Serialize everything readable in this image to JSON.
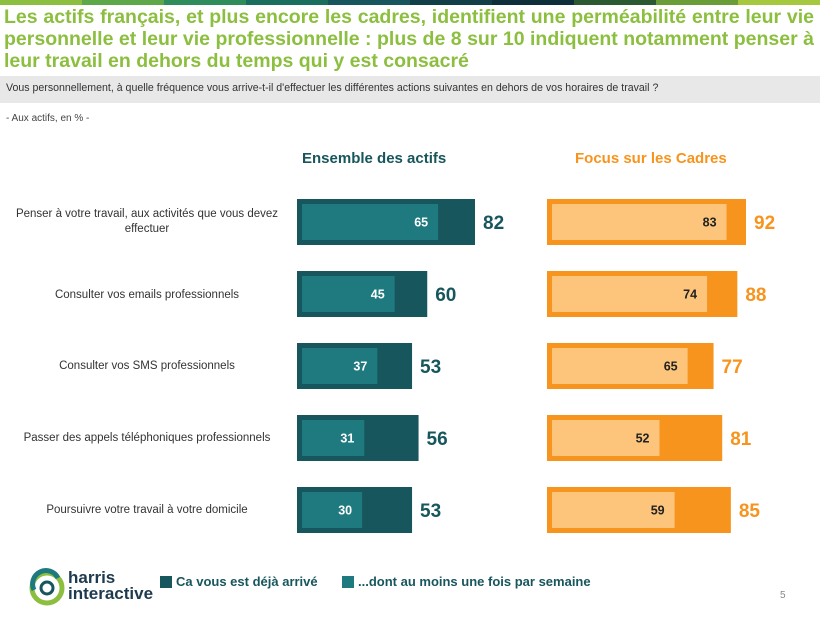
{
  "title": "Les actifs français, et plus encore les cadres, identifient une perméabilité entre leur vie personnelle et leur vie professionnelle : plus de 8 sur 10 indiquent notamment penser à leur travail en dehors du temps qui y est consacré",
  "question": "Vous personnellement, à quelle fréquence vous arrive-t-il d'effectuer les différentes actions suivantes en dehors de vos horaires de travail ?",
  "base": "- Aux actifs, en % -",
  "page_number": "5",
  "logo": {
    "line1": "harris",
    "line2": "interactive"
  },
  "legend": {
    "already": "Ca vous est déjà arrivé",
    "weekly": "...dont au moins une fois par semaine"
  },
  "colors": {
    "title_green": "#8cbf3f",
    "teal_dark": "#17565c",
    "teal_light": "#1f7a80",
    "orange_dark": "#f7941d",
    "orange_light": "#fdc57b",
    "panel_title_teal": "#17565c",
    "panel_title_orange": "#f7941d"
  },
  "chart_data": [
    {
      "type": "bar",
      "orientation": "horizontal",
      "title": "Ensemble des actifs",
      "categories": [
        "Penser à votre travail, aux activités que vous devez effectuer",
        "Consulter vos emails professionnels",
        "Consulter vos SMS professionnels",
        "Passer des appels téléphoniques professionnels",
        "Poursuivre votre travail à votre domicile"
      ],
      "series": [
        {
          "name": "Ca vous est déjà arrivé",
          "values": [
            82,
            60,
            53,
            56,
            53
          ]
        },
        {
          "name": "...dont au moins une fois par semaine",
          "values": [
            65,
            45,
            37,
            31,
            30
          ]
        }
      ],
      "xlim": [
        0,
        100
      ]
    },
    {
      "type": "bar",
      "orientation": "horizontal",
      "title": "Focus sur les Cadres",
      "categories": [
        "Penser à votre travail, aux activités que vous devez effectuer",
        "Consulter vos emails professionnels",
        "Consulter vos SMS professionnels",
        "Passer des appels téléphoniques professionnels",
        "Poursuivre votre travail à votre domicile"
      ],
      "series": [
        {
          "name": "Ca vous est déjà arrivé",
          "values": [
            92,
            88,
            77,
            81,
            85
          ]
        },
        {
          "name": "...dont au moins une fois par semaine",
          "values": [
            83,
            74,
            65,
            52,
            59
          ]
        }
      ],
      "xlim": [
        0,
        100
      ]
    }
  ]
}
